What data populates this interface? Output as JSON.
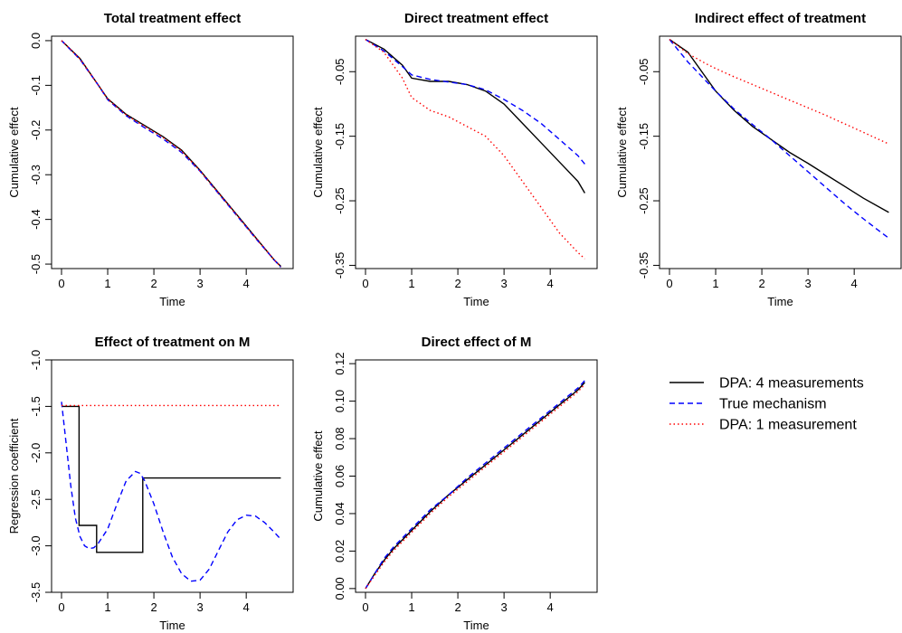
{
  "legend": {
    "position": "right, beside bottom-row panels",
    "entries": [
      {
        "label": "DPA: 4 measurements",
        "color": "#000000",
        "dash": "solid"
      },
      {
        "label": "True mechanism",
        "color": "#0000ff",
        "dash": "dashed"
      },
      {
        "label": "DPA: 1 measurement",
        "color": "#ff0000",
        "dash": "dotted"
      }
    ]
  },
  "chart_data": [
    {
      "type": "line",
      "title": "Total treatment effect",
      "xlabel": "Time",
      "ylabel": "Cumulative effect",
      "xlim": [
        0,
        4.8
      ],
      "ylim": [
        -0.51,
        0.01
      ],
      "xticks": [
        0,
        1,
        2,
        3,
        4
      ],
      "yticks": [
        0.0,
        -0.1,
        -0.2,
        -0.3,
        -0.4,
        -0.5
      ],
      "ytick_labels": [
        "0.0",
        "-0.1",
        "-0.2",
        "-0.3",
        "-0.4",
        "-0.5"
      ],
      "grid": false,
      "series": [
        {
          "name": "DPA: 4 measurements",
          "x": [
            0,
            0.4,
            0.8,
            1.0,
            1.4,
            1.8,
            2.2,
            2.6,
            3.0,
            3.4,
            3.8,
            4.2,
            4.6,
            4.75
          ],
          "y": [
            0.0,
            -0.04,
            -0.1,
            -0.13,
            -0.165,
            -0.19,
            -0.215,
            -0.245,
            -0.29,
            -0.34,
            -0.39,
            -0.44,
            -0.49,
            -0.505
          ]
        },
        {
          "name": "True mechanism",
          "x": [
            0,
            0.4,
            0.8,
            1.0,
            1.4,
            1.8,
            2.2,
            2.6,
            3.0,
            3.4,
            3.8,
            4.2,
            4.6,
            4.75
          ],
          "y": [
            0.0,
            -0.042,
            -0.1,
            -0.132,
            -0.168,
            -0.195,
            -0.22,
            -0.25,
            -0.292,
            -0.342,
            -0.392,
            -0.442,
            -0.49,
            -0.507
          ]
        },
        {
          "name": "DPA: 1 measurement",
          "x": [
            0,
            0.4,
            0.8,
            1.0,
            1.4,
            1.8,
            2.2,
            2.6,
            3.0,
            3.4,
            3.8,
            4.2,
            4.6,
            4.75
          ],
          "y": [
            0.0,
            -0.041,
            -0.1,
            -0.131,
            -0.166,
            -0.192,
            -0.217,
            -0.247,
            -0.291,
            -0.341,
            -0.391,
            -0.441,
            -0.49,
            -0.506
          ]
        }
      ]
    },
    {
      "type": "line",
      "title": "Direct treatment effect",
      "xlabel": "Time",
      "ylabel": "Cumulative effect",
      "xlim": [
        0,
        4.8
      ],
      "ylim": [
        -0.355,
        0.005
      ],
      "xticks": [
        0,
        1,
        2,
        3,
        4
      ],
      "yticks": [
        -0.05,
        -0.15,
        -0.25,
        -0.35
      ],
      "ytick_labels": [
        "-0.05",
        "-0.15",
        "-0.25",
        "-0.35"
      ],
      "grid": false,
      "series": [
        {
          "name": "DPA: 4 measurements",
          "x": [
            0,
            0.4,
            0.8,
            1.0,
            1.4,
            1.8,
            2.2,
            2.6,
            3.0,
            3.4,
            3.8,
            4.2,
            4.6,
            4.75
          ],
          "y": [
            0.0,
            -0.015,
            -0.04,
            -0.06,
            -0.065,
            -0.065,
            -0.07,
            -0.08,
            -0.1,
            -0.13,
            -0.16,
            -0.19,
            -0.22,
            -0.238
          ]
        },
        {
          "name": "True mechanism",
          "x": [
            0,
            0.4,
            0.8,
            1.0,
            1.4,
            1.8,
            2.2,
            2.6,
            3.0,
            3.4,
            3.8,
            4.2,
            4.6,
            4.75
          ],
          "y": [
            0.0,
            -0.018,
            -0.042,
            -0.055,
            -0.062,
            -0.066,
            -0.07,
            -0.078,
            -0.093,
            -0.11,
            -0.13,
            -0.155,
            -0.18,
            -0.193
          ]
        },
        {
          "name": "DPA: 1 measurement",
          "x": [
            0,
            0.4,
            0.8,
            1.0,
            1.4,
            1.8,
            2.2,
            2.6,
            3.0,
            3.4,
            3.8,
            4.2,
            4.6,
            4.75
          ],
          "y": [
            0.0,
            -0.02,
            -0.06,
            -0.09,
            -0.11,
            -0.12,
            -0.135,
            -0.15,
            -0.18,
            -0.22,
            -0.26,
            -0.3,
            -0.33,
            -0.34
          ]
        }
      ]
    },
    {
      "type": "line",
      "title": "Indirect effect of treatment",
      "xlabel": "Time",
      "ylabel": "Cumulative effect",
      "xlim": [
        0,
        4.8
      ],
      "ylim": [
        -0.355,
        0.005
      ],
      "xticks": [
        0,
        1,
        2,
        3,
        4
      ],
      "yticks": [
        -0.05,
        -0.15,
        -0.25,
        -0.35
      ],
      "ytick_labels": [
        "-0.05",
        "-0.15",
        "-0.25",
        "-0.35"
      ],
      "grid": false,
      "series": [
        {
          "name": "DPA: 4 measurements",
          "x": [
            0,
            0.4,
            0.8,
            1.0,
            1.4,
            1.8,
            2.2,
            2.6,
            3.0,
            3.4,
            3.8,
            4.2,
            4.6,
            4.75
          ],
          "y": [
            0.0,
            -0.02,
            -0.06,
            -0.08,
            -0.11,
            -0.135,
            -0.155,
            -0.175,
            -0.192,
            -0.21,
            -0.228,
            -0.246,
            -0.262,
            -0.268
          ]
        },
        {
          "name": "True mechanism",
          "x": [
            0,
            0.4,
            0.8,
            1.0,
            1.4,
            1.8,
            2.2,
            2.6,
            3.0,
            3.4,
            3.8,
            4.2,
            4.6,
            4.75
          ],
          "y": [
            0.0,
            -0.035,
            -0.065,
            -0.08,
            -0.108,
            -0.132,
            -0.155,
            -0.18,
            -0.205,
            -0.23,
            -0.255,
            -0.278,
            -0.3,
            -0.308
          ]
        },
        {
          "name": "DPA: 1 measurement",
          "x": [
            0,
            0.4,
            0.8,
            1.0,
            1.4,
            1.8,
            2.2,
            2.6,
            3.0,
            3.4,
            3.8,
            4.2,
            4.6,
            4.75
          ],
          "y": [
            0.0,
            -0.022,
            -0.038,
            -0.045,
            -0.058,
            -0.07,
            -0.082,
            -0.094,
            -0.106,
            -0.118,
            -0.131,
            -0.144,
            -0.157,
            -0.162
          ]
        }
      ]
    },
    {
      "type": "line",
      "title": "Effect of treatment on M",
      "xlabel": "Time",
      "ylabel": "Regression coefficient",
      "xlim": [
        0,
        4.8
      ],
      "ylim": [
        -3.5,
        -1.0
      ],
      "xticks": [
        0,
        1,
        2,
        3,
        4
      ],
      "yticks": [
        -1.0,
        -1.5,
        -2.0,
        -2.5,
        -3.0,
        -3.5
      ],
      "ytick_labels": [
        "-1.0",
        "-1.5",
        "-2.0",
        "-2.5",
        "-3.0",
        "-3.5"
      ],
      "grid": false,
      "series": [
        {
          "name": "DPA: 4 measurements",
          "x": [
            0,
            0.38,
            0.38,
            0.76,
            0.76,
            1.76,
            1.76,
            4.75
          ],
          "y": [
            -1.5,
            -1.5,
            -2.78,
            -2.78,
            -3.07,
            -3.07,
            -2.27,
            -2.27
          ]
        },
        {
          "name": "True mechanism",
          "x": [
            0,
            0.1,
            0.2,
            0.3,
            0.4,
            0.5,
            0.6,
            0.7,
            0.8,
            1.0,
            1.2,
            1.4,
            1.6,
            1.7,
            1.8,
            2.0,
            2.2,
            2.4,
            2.6,
            2.8,
            3.0,
            3.2,
            3.4,
            3.6,
            3.8,
            4.0,
            4.2,
            4.4,
            4.6,
            4.75
          ],
          "y": [
            -1.45,
            -1.9,
            -2.35,
            -2.7,
            -2.9,
            -3.0,
            -3.03,
            -3.02,
            -2.97,
            -2.82,
            -2.55,
            -2.3,
            -2.2,
            -2.22,
            -2.3,
            -2.55,
            -2.85,
            -3.12,
            -3.3,
            -3.38,
            -3.37,
            -3.25,
            -3.05,
            -2.85,
            -2.72,
            -2.67,
            -2.68,
            -2.75,
            -2.85,
            -2.93
          ]
        },
        {
          "name": "DPA: 1 measurement",
          "x": [
            0,
            1,
            2,
            3,
            4,
            4.75
          ],
          "y": [
            -1.49,
            -1.49,
            -1.49,
            -1.49,
            -1.49,
            -1.49
          ]
        }
      ]
    },
    {
      "type": "line",
      "title": "Direct effect of M",
      "xlabel": "Time",
      "ylabel": "Cumulative effect",
      "xlim": [
        0,
        4.8
      ],
      "ylim": [
        -0.002,
        0.122
      ],
      "xticks": [
        0,
        1,
        2,
        3,
        4
      ],
      "yticks": [
        0.0,
        0.02,
        0.04,
        0.06,
        0.08,
        0.1,
        0.12
      ],
      "ytick_labels": [
        "0.00",
        "0.02",
        "0.04",
        "0.06",
        "0.08",
        "0.10",
        "0.12"
      ],
      "grid": false,
      "series": [
        {
          "name": "DPA: 4 measurements",
          "x": [
            0,
            0.2,
            0.4,
            0.6,
            0.8,
            1.0,
            1.4,
            1.8,
            2.2,
            2.6,
            3.0,
            3.4,
            3.8,
            4.2,
            4.6,
            4.75
          ],
          "y": [
            0.0,
            0.008,
            0.015,
            0.021,
            0.026,
            0.031,
            0.041,
            0.05,
            0.058,
            0.066,
            0.074,
            0.082,
            0.09,
            0.098,
            0.106,
            0.11
          ]
        },
        {
          "name": "True mechanism",
          "x": [
            0,
            0.2,
            0.4,
            0.6,
            0.8,
            1.0,
            1.4,
            1.8,
            2.2,
            2.6,
            3.0,
            3.4,
            3.8,
            4.2,
            4.6,
            4.75
          ],
          "y": [
            0.0,
            0.008,
            0.016,
            0.022,
            0.027,
            0.032,
            0.042,
            0.05,
            0.059,
            0.067,
            0.075,
            0.083,
            0.091,
            0.099,
            0.107,
            0.111
          ]
        },
        {
          "name": "DPA: 1 measurement",
          "x": [
            0,
            0.2,
            0.4,
            0.6,
            0.8,
            1.0,
            1.4,
            1.8,
            2.2,
            2.6,
            3.0,
            3.4,
            3.8,
            4.2,
            4.6,
            4.75
          ],
          "y": [
            0.0,
            0.007,
            0.014,
            0.02,
            0.025,
            0.03,
            0.04,
            0.049,
            0.057,
            0.065,
            0.073,
            0.081,
            0.089,
            0.097,
            0.105,
            0.109
          ]
        }
      ]
    }
  ]
}
